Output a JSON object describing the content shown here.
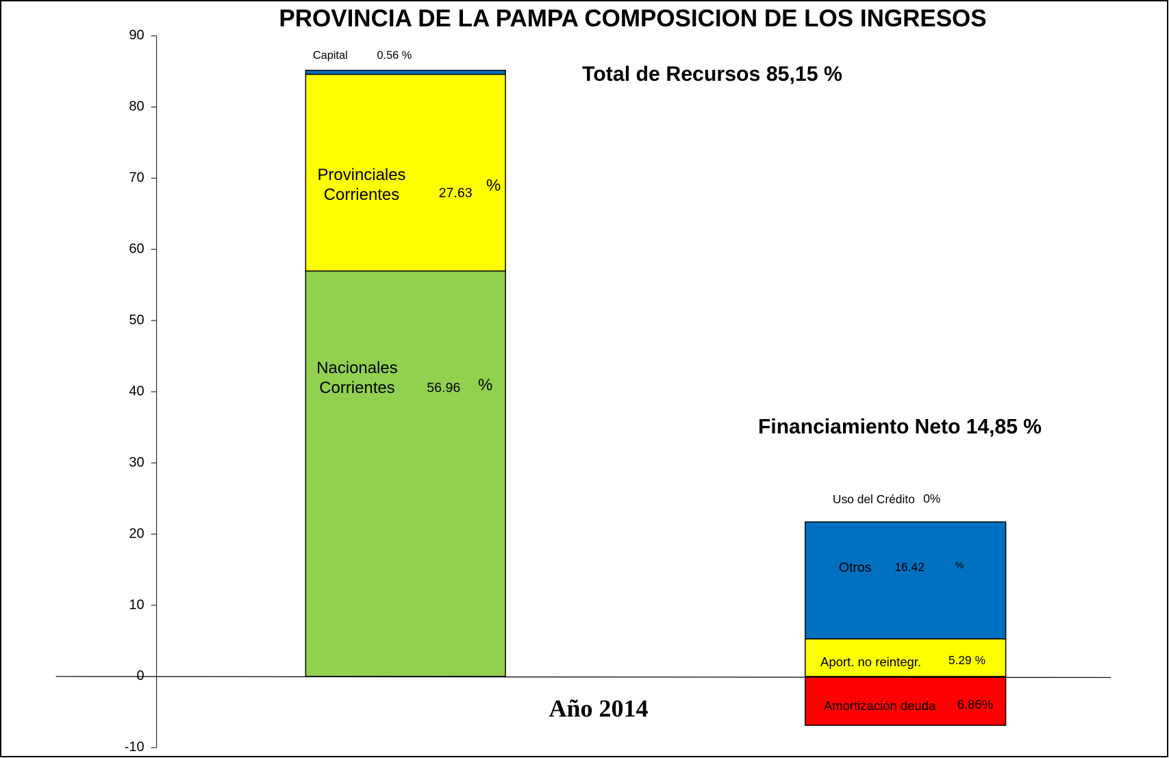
{
  "chart_data": {
    "type": "stacked_bar",
    "title": "PROVINCIA DE LA PAMPA COMPOSICION DE LOS INGRESOS",
    "x_label": "Año 2014",
    "annotations": [
      "Total de Recursos 85,15 %",
      "Financiamiento Neto 14,85 %"
    ],
    "categories": [
      null,
      null
    ],
    "ylim": [
      -10,
      90
    ],
    "yticks": [
      -10,
      0,
      10,
      20,
      30,
      40,
      50,
      60,
      70,
      80,
      90
    ],
    "series": [
      {
        "name": "Nacionales Corrientes",
        "color": "#92d050",
        "values": [
          56.96,
          null
        ],
        "value_labels": [
          "56.96",
          null
        ],
        "unit": "%"
      },
      {
        "name": "Provinciales Corrientes",
        "color": "#ffff00",
        "values": [
          27.63,
          null
        ],
        "value_labels": [
          "27.63",
          null
        ],
        "unit": "%"
      },
      {
        "name": "Capital",
        "color": "#0070c0",
        "values": [
          0.56,
          null
        ],
        "value_labels": [
          "0.56 %",
          null
        ]
      },
      {
        "name": "Amortización deuda",
        "color": "#ff0000",
        "values": [
          null,
          -6.86
        ],
        "value_labels": [
          null,
          "6.86%"
        ]
      },
      {
        "name": "Aport. no reintegr.",
        "color": "#ffff00",
        "values": [
          null,
          5.29
        ],
        "value_labels": [
          null,
          "5.29 %"
        ]
      },
      {
        "name": "Otros",
        "color": "#0070c0",
        "values": [
          null,
          16.42
        ],
        "value_labels": [
          null,
          "16.42"
        ],
        "unit": "%"
      },
      {
        "name": "Uso del Crédito",
        "color": "#0070c0",
        "values": [
          null,
          0
        ],
        "value_labels": [
          null,
          "0%"
        ]
      }
    ]
  }
}
